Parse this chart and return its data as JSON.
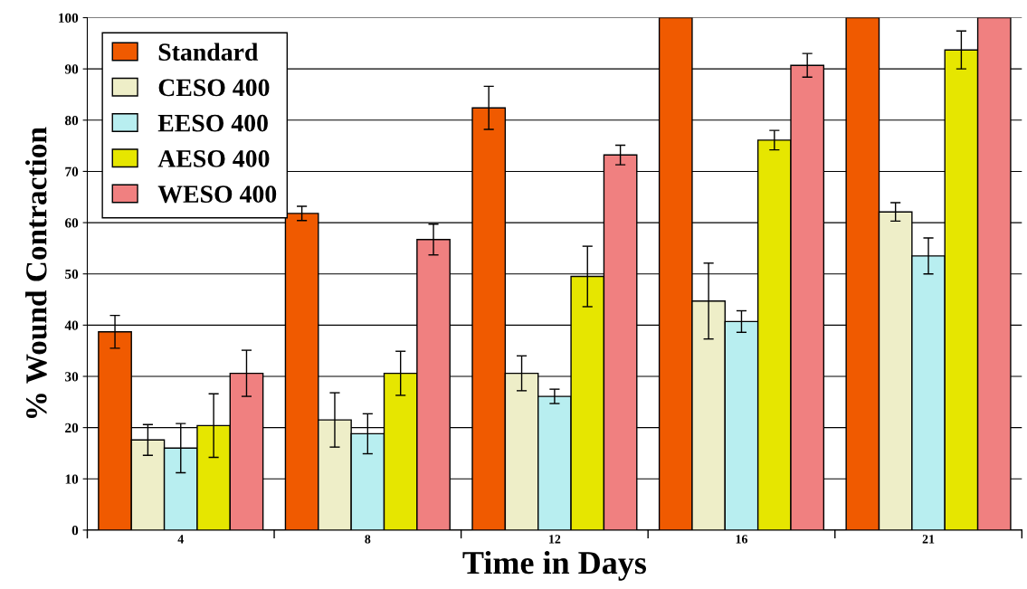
{
  "chart_data": {
    "type": "bar",
    "xlabel": "Time in Days",
    "ylabel": "% Wound Contraction",
    "categories": [
      "4",
      "8",
      "12",
      "16",
      "21"
    ],
    "series": [
      {
        "name": "Standard",
        "color": "#f05a00",
        "values": [
          38.7,
          61.8,
          82.4,
          100,
          100
        ],
        "errors": [
          3.2,
          1.4,
          4.2,
          null,
          null
        ]
      },
      {
        "name": "CESO 400",
        "color": "#eeeec8",
        "values": [
          17.6,
          21.5,
          30.6,
          44.7,
          62.1
        ],
        "errors": [
          3,
          5.3,
          3.4,
          7.4,
          1.8
        ]
      },
      {
        "name": "EESO 400",
        "color": "#b8eef0",
        "values": [
          16,
          18.8,
          26.1,
          40.7,
          53.5
        ],
        "errors": [
          4.8,
          3.9,
          1.4,
          2.1,
          3.5
        ]
      },
      {
        "name": "AESO 400",
        "color": "#e6e600",
        "values": [
          20.4,
          30.6,
          49.5,
          76.1,
          93.7
        ],
        "errors": [
          6.2,
          4.3,
          5.9,
          1.9,
          3.7
        ]
      },
      {
        "name": "WESO 400",
        "color": "#f08080",
        "values": [
          30.6,
          56.7,
          73.2,
          90.7,
          100
        ],
        "errors": [
          4.5,
          3,
          1.9,
          2.3,
          null
        ]
      }
    ],
    "ylim": [
      0,
      100
    ],
    "yticks": [
      0,
      10,
      20,
      30,
      40,
      50,
      60,
      70,
      80,
      90,
      100
    ],
    "grid": "y",
    "legend": "top left"
  }
}
